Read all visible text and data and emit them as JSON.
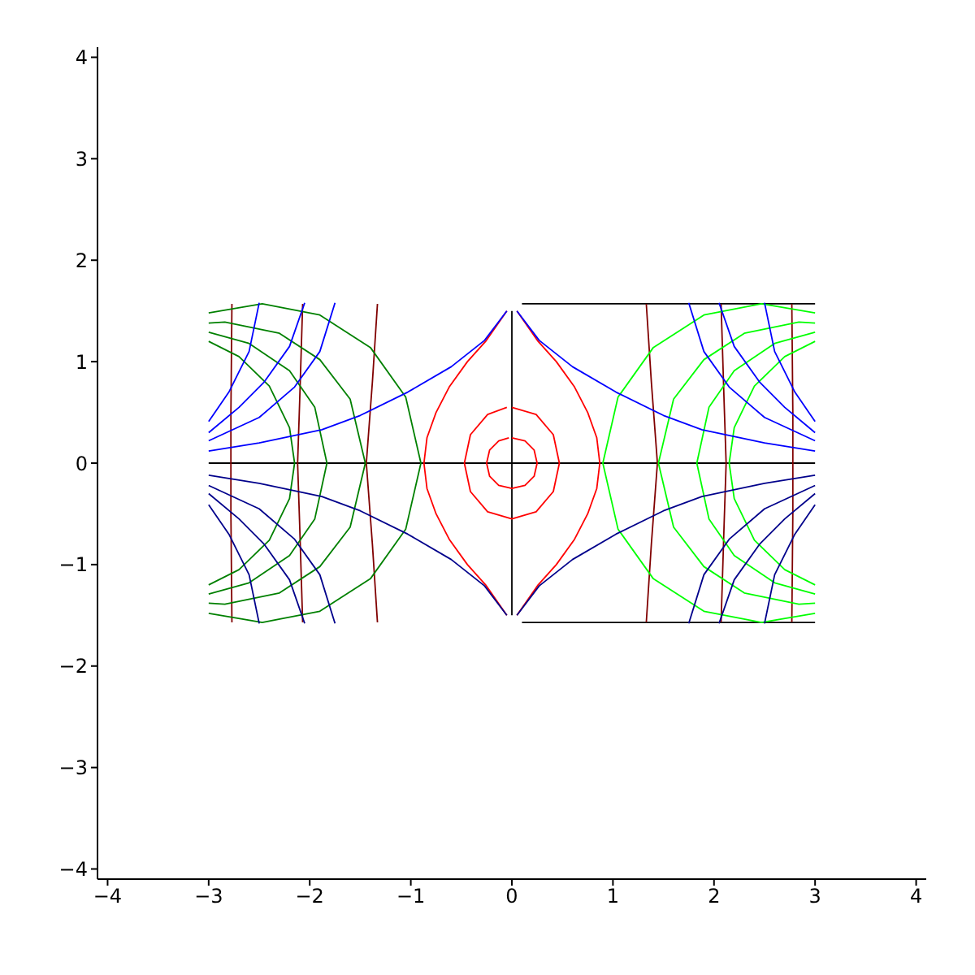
{
  "chart_data": {
    "type": "line",
    "xlim": [
      -4.1,
      4.1
    ],
    "ylim": [
      -4.1,
      4.1
    ],
    "xticks": [
      -4,
      -3,
      -2,
      -1,
      0,
      1,
      2,
      3,
      4
    ],
    "yticks": [
      -4,
      -3,
      -2,
      -1,
      0,
      1,
      2,
      3,
      4
    ],
    "series": [
      {
        "color": "#000000",
        "x": [
          -3.0,
          3.0
        ],
        "values": [
          0,
          0
        ]
      },
      {
        "color": "#000000",
        "x": [
          0,
          0
        ],
        "values": [
          -1.5,
          1.5
        ]
      },
      {
        "color": "#000000",
        "x": [
          0.1,
          3.0
        ],
        "values": [
          1.57,
          1.57
        ]
      },
      {
        "color": "#000000",
        "x": [
          0.1,
          3.0
        ],
        "values": [
          -1.57,
          -1.57
        ]
      },
      {
        "color": "#ff0000",
        "x": [
          0.05,
          0.26,
          0.44,
          0.62,
          0.75,
          0.84,
          0.87,
          0.84,
          0.75,
          0.62,
          0.44,
          0.26,
          0.05
        ],
        "values": [
          1.5,
          1.2,
          1.0,
          0.75,
          0.5,
          0.25,
          0,
          -0.25,
          -0.5,
          -0.75,
          -1.0,
          -1.2,
          -1.5
        ]
      },
      {
        "color": "#ff0000",
        "x": [
          -0.05,
          -0.26,
          -0.44,
          -0.62,
          -0.75,
          -0.84,
          -0.87,
          -0.84,
          -0.75,
          -0.62,
          -0.44,
          -0.26,
          -0.05
        ],
        "values": [
          1.5,
          1.2,
          1.0,
          0.75,
          0.5,
          0.25,
          0,
          -0.25,
          -0.5,
          -0.75,
          -1.0,
          -1.2,
          -1.5
        ]
      },
      {
        "color": "#ff0000",
        "x": [
          0,
          0.24,
          0.41,
          0.47,
          0.41,
          0.24,
          0,
          -0.24,
          -0.41,
          -0.47,
          -0.41,
          -0.24,
          -0.05
        ],
        "values": [
          0.55,
          0.48,
          0.28,
          0,
          -0.28,
          -0.48,
          -0.55,
          -0.48,
          -0.28,
          0,
          0.28,
          0.48,
          0.55
        ]
      },
      {
        "color": "#ff0000",
        "x": [
          0,
          0.13,
          0.22,
          0.25,
          0.22,
          0.13,
          0,
          -0.13,
          -0.22,
          -0.25,
          -0.22,
          -0.13,
          -0.03
        ],
        "values": [
          0.25,
          0.22,
          0.13,
          0,
          -0.13,
          -0.22,
          -0.25,
          -0.22,
          -0.13,
          0,
          0.13,
          0.22,
          0.25
        ]
      },
      {
        "color": "#800000",
        "x": [
          -2.77,
          -2.78,
          -2.78,
          -2.78,
          -2.77
        ],
        "values": [
          1.57,
          0.5,
          0,
          -0.5,
          -1.57
        ]
      },
      {
        "color": "#800000",
        "x": [
          -2.07,
          -2.1,
          -2.12,
          -2.1,
          -2.07
        ],
        "values": [
          1.57,
          0.6,
          0,
          -0.6,
          -1.57
        ]
      },
      {
        "color": "#800000",
        "x": [
          -1.33,
          -1.38,
          -1.44,
          -1.38,
          -1.33
        ],
        "values": [
          1.57,
          0.8,
          0,
          -0.8,
          -1.57
        ]
      },
      {
        "color": "#800000",
        "x": [
          2.77,
          2.78,
          2.78,
          2.78,
          2.77
        ],
        "values": [
          1.57,
          0.5,
          0,
          -0.5,
          -1.57
        ]
      },
      {
        "color": "#800000",
        "x": [
          2.07,
          2.1,
          2.12,
          2.1,
          2.07
        ],
        "values": [
          1.57,
          0.6,
          0,
          -0.6,
          -1.57
        ]
      },
      {
        "color": "#800000",
        "x": [
          1.33,
          1.38,
          1.44,
          1.38,
          1.33
        ],
        "values": [
          1.57,
          0.8,
          0,
          -0.8,
          -1.57
        ]
      },
      {
        "color": "#008000",
        "x": [
          -3.0,
          -2.47,
          -1.9,
          -1.4,
          -1.05,
          -0.9,
          -1.05,
          -1.4,
          -1.9,
          -2.47,
          -3.0
        ],
        "values": [
          1.48,
          1.57,
          1.46,
          1.14,
          0.65,
          0,
          -0.65,
          -1.14,
          -1.46,
          -1.57,
          -1.48
        ]
      },
      {
        "color": "#008000",
        "x": [
          -3.0,
          -2.84,
          -2.3,
          -1.9,
          -1.6,
          -1.45,
          -1.6,
          -1.9,
          -2.3,
          -2.84,
          -3.0
        ],
        "values": [
          1.38,
          1.39,
          1.28,
          1.02,
          0.63,
          0,
          -0.63,
          -1.02,
          -1.28,
          -1.39,
          -1.38
        ]
      },
      {
        "color": "#008000",
        "x": [
          -3.0,
          -2.6,
          -2.2,
          -1.95,
          -1.83,
          -1.95,
          -2.2,
          -2.6,
          -3.0
        ],
        "values": [
          1.29,
          1.18,
          0.91,
          0.55,
          0,
          -0.55,
          -0.91,
          -1.18,
          -1.29
        ]
      },
      {
        "color": "#008000",
        "x": [
          -3.0,
          -2.7,
          -2.4,
          -2.2,
          -2.15,
          -2.2,
          -2.4,
          -2.7,
          -3.0
        ],
        "values": [
          1.2,
          1.05,
          0.76,
          0.35,
          0,
          -0.35,
          -0.76,
          -1.05,
          -1.2
        ]
      },
      {
        "color": "#00ff00",
        "x": [
          3.0,
          2.47,
          1.9,
          1.4,
          1.05,
          0.9,
          1.05,
          1.4,
          1.9,
          2.47,
          3.0
        ],
        "values": [
          1.48,
          1.57,
          1.46,
          1.14,
          0.65,
          0,
          -0.65,
          -1.14,
          -1.46,
          -1.57,
          -1.48
        ]
      },
      {
        "color": "#00ff00",
        "x": [
          3.0,
          2.84,
          2.3,
          1.9,
          1.6,
          1.45,
          1.6,
          1.9,
          2.3,
          2.84,
          3.0
        ],
        "values": [
          1.38,
          1.39,
          1.28,
          1.02,
          0.63,
          0,
          -0.63,
          -1.02,
          -1.28,
          -1.39,
          -1.38
        ]
      },
      {
        "color": "#00ff00",
        "x": [
          3.0,
          2.6,
          2.2,
          1.95,
          1.83,
          1.95,
          2.2,
          2.6,
          3.0
        ],
        "values": [
          1.29,
          1.18,
          0.91,
          0.55,
          0,
          -0.55,
          -0.91,
          -1.18,
          -1.29
        ]
      },
      {
        "color": "#00ff00",
        "x": [
          3.0,
          2.7,
          2.4,
          2.2,
          2.15,
          2.2,
          2.4,
          2.7,
          3.0
        ],
        "values": [
          1.2,
          1.05,
          0.76,
          0.35,
          0,
          -0.35,
          -0.76,
          -1.05,
          -1.2
        ]
      },
      {
        "color": "#0000ff",
        "x": [
          0.05,
          0.27,
          0.6,
          1.03,
          1.5,
          1.88,
          2.5,
          3.0
        ],
        "values": [
          1.5,
          1.21,
          0.95,
          0.7,
          0.47,
          0.33,
          0.2,
          0.12
        ]
      },
      {
        "color": "#0000ff",
        "x": [
          1.75,
          1.9,
          2.15,
          2.5,
          3.0
        ],
        "values": [
          1.58,
          1.1,
          0.75,
          0.45,
          0.22
        ]
      },
      {
        "color": "#0000ff",
        "x": [
          2.05,
          2.2,
          2.45,
          2.7,
          3.0
        ],
        "values": [
          1.58,
          1.15,
          0.8,
          0.55,
          0.3
        ]
      },
      {
        "color": "#0000ff",
        "x": [
          2.5,
          2.6,
          2.8,
          3.0
        ],
        "values": [
          1.58,
          1.1,
          0.7,
          0.41
        ]
      },
      {
        "color": "#0000ff",
        "x": [
          -0.05,
          -0.27,
          -0.6,
          -1.03,
          -1.5,
          -1.88,
          -2.5,
          -3.0
        ],
        "values": [
          1.5,
          1.21,
          0.95,
          0.7,
          0.47,
          0.33,
          0.2,
          0.12
        ]
      },
      {
        "color": "#0000ff",
        "x": [
          -1.75,
          -1.9,
          -2.15,
          -2.5,
          -3.0
        ],
        "values": [
          1.58,
          1.1,
          0.75,
          0.45,
          0.22
        ]
      },
      {
        "color": "#0000ff",
        "x": [
          -2.05,
          -2.2,
          -2.45,
          -2.7,
          -3.0
        ],
        "values": [
          1.58,
          1.15,
          0.8,
          0.55,
          0.3
        ]
      },
      {
        "color": "#0000ff",
        "x": [
          -2.5,
          -2.6,
          -2.8,
          -3.0
        ],
        "values": [
          1.58,
          1.1,
          0.7,
          0.41
        ]
      },
      {
        "color": "#00008b",
        "x": [
          0.05,
          0.27,
          0.6,
          1.03,
          1.5,
          1.88,
          2.5,
          3.0
        ],
        "values": [
          -1.5,
          -1.21,
          -0.95,
          -0.7,
          -0.47,
          -0.33,
          -0.2,
          -0.12
        ]
      },
      {
        "color": "#00008b",
        "x": [
          1.75,
          1.9,
          2.15,
          2.5,
          3.0
        ],
        "values": [
          -1.58,
          -1.1,
          -0.75,
          -0.45,
          -0.22
        ]
      },
      {
        "color": "#00008b",
        "x": [
          2.05,
          2.2,
          2.45,
          2.7,
          3.0
        ],
        "values": [
          -1.58,
          -1.15,
          -0.8,
          -0.55,
          -0.3
        ]
      },
      {
        "color": "#00008b",
        "x": [
          2.5,
          2.6,
          2.8,
          3.0
        ],
        "values": [
          -1.58,
          -1.1,
          -0.7,
          -0.41
        ]
      },
      {
        "color": "#00008b",
        "x": [
          -0.05,
          -0.27,
          -0.6,
          -1.03,
          -1.5,
          -1.88,
          -2.5,
          -3.0
        ],
        "values": [
          -1.5,
          -1.21,
          -0.95,
          -0.7,
          -0.47,
          -0.33,
          -0.2,
          -0.12
        ]
      },
      {
        "color": "#00008b",
        "x": [
          -1.75,
          -1.9,
          -2.15,
          -2.5,
          -3.0
        ],
        "values": [
          -1.58,
          -1.1,
          -0.75,
          -0.45,
          -0.22
        ]
      },
      {
        "color": "#00008b",
        "x": [
          -2.05,
          -2.2,
          -2.45,
          -2.7,
          -3.0
        ],
        "values": [
          -1.58,
          -1.15,
          -0.8,
          -0.55,
          -0.3
        ]
      },
      {
        "color": "#00008b",
        "x": [
          -2.5,
          -2.6,
          -2.8,
          -3.0
        ],
        "values": [
          -1.58,
          -1.1,
          -0.7,
          -0.41
        ]
      }
    ]
  }
}
